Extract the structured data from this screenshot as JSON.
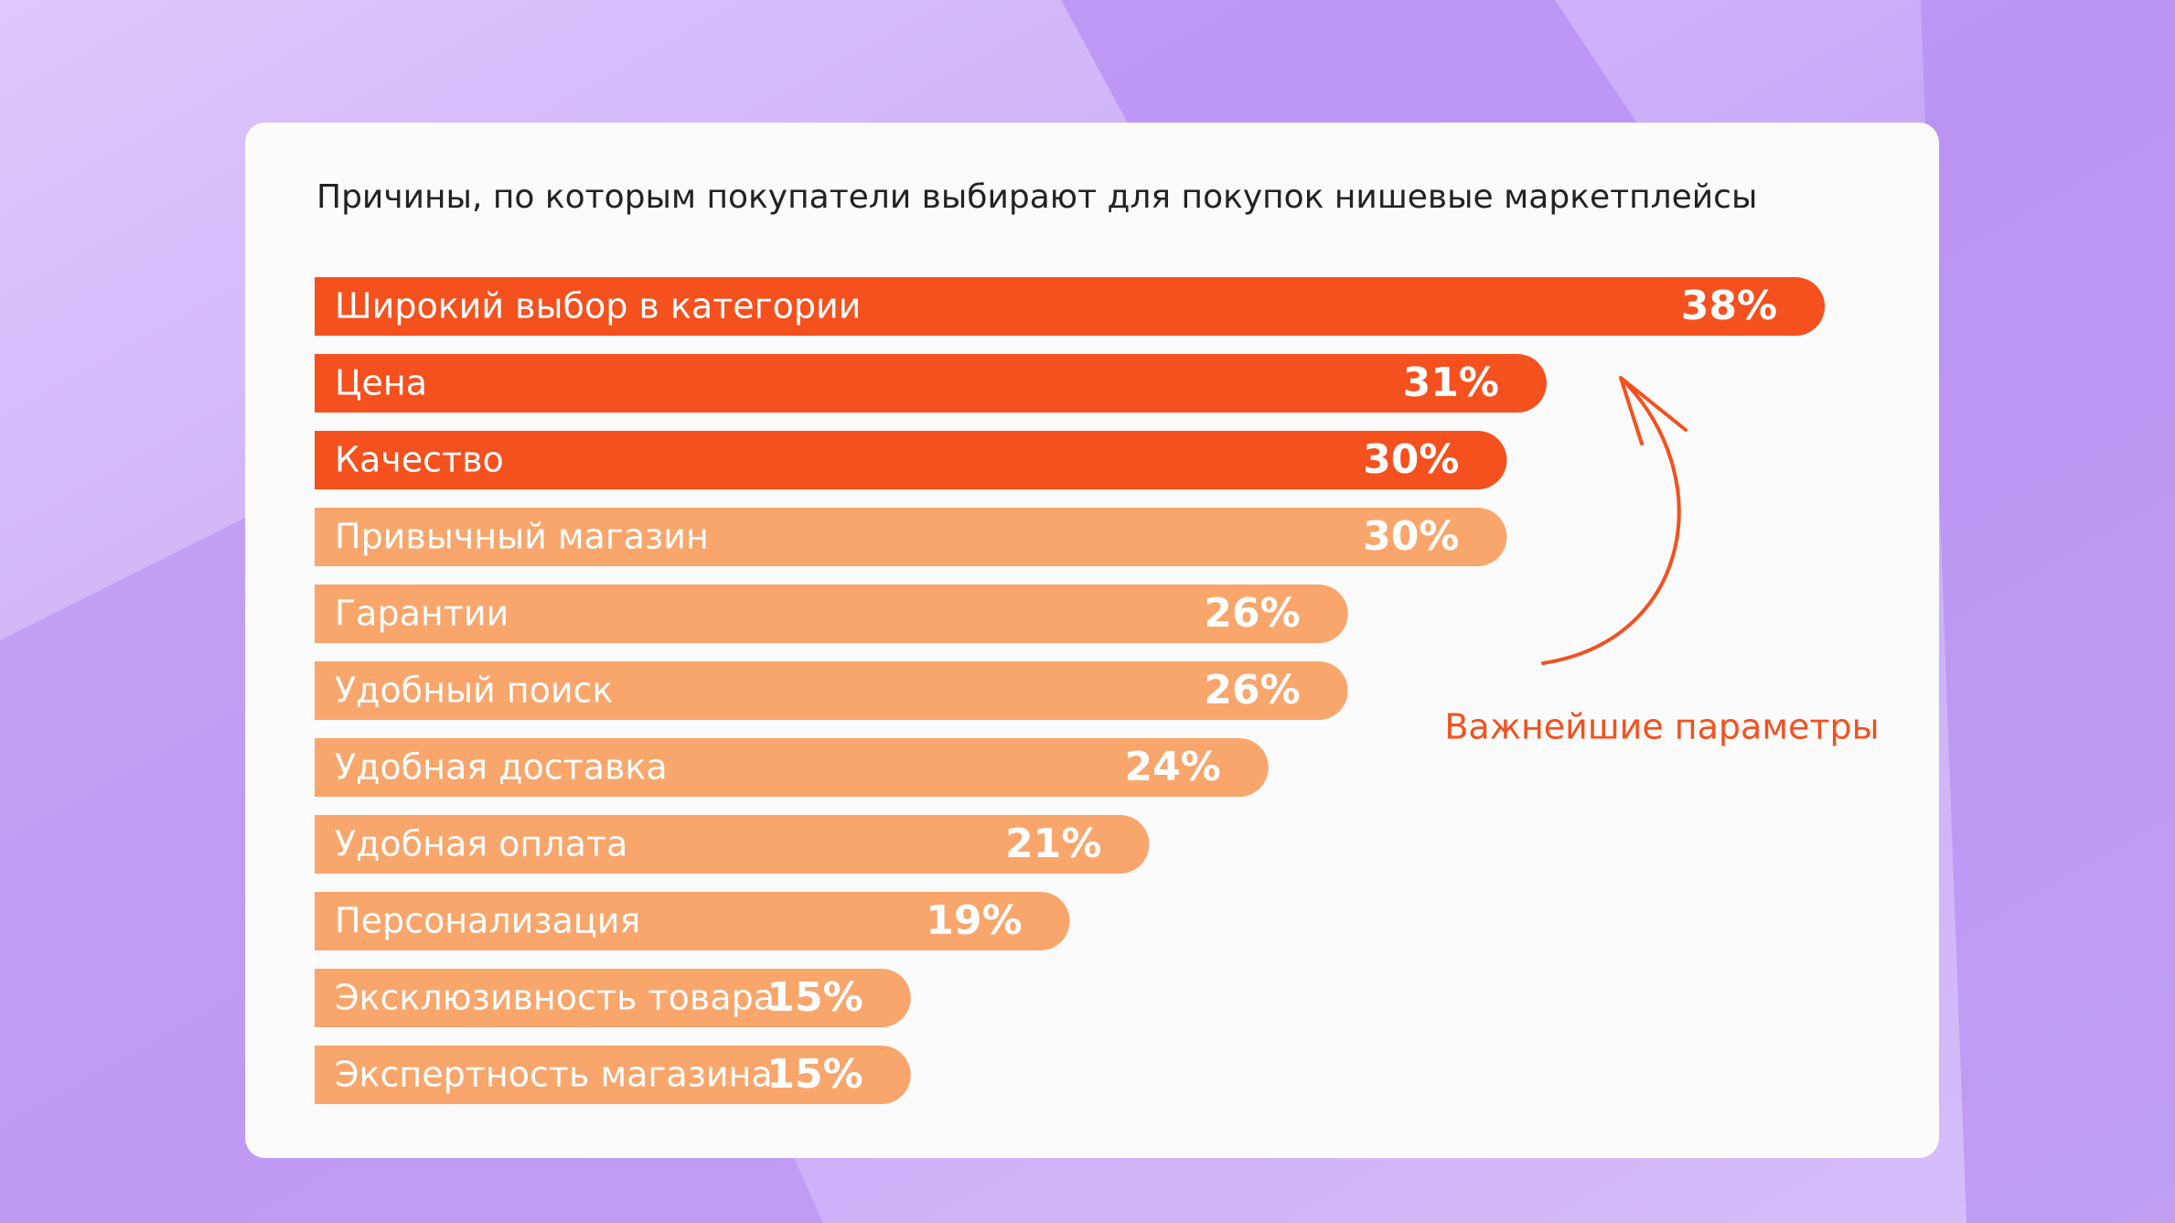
{
  "chart_data": {
    "type": "bar",
    "orientation": "horizontal",
    "title": "Причины, по которым покупатели выбирают для покупок нишевые маркетплейсы",
    "categories": [
      "Широкий выбор в категории",
      "Цена",
      "Качество",
      "Привычный магазин",
      "Гарантии",
      "Удобный поиск",
      "Удобная доставка",
      "Удобная оплата",
      "Персонализация",
      "Эксклюзивность товара",
      "Экспертность магазина"
    ],
    "values": [
      38,
      31,
      30,
      30,
      26,
      26,
      24,
      21,
      19,
      15,
      15
    ],
    "value_labels": [
      "38%",
      "31%",
      "30%",
      "30%",
      "26%",
      "26%",
      "24%",
      "21%",
      "19%",
      "15%",
      "15%"
    ],
    "colors": [
      "#f4511e",
      "#f4511e",
      "#f4511e",
      "#f9a66c",
      "#f9a66c",
      "#f9a66c",
      "#f9a66c",
      "#f9a66c",
      "#f9a66c",
      "#f9a66c",
      "#f9a66c"
    ],
    "annotation": "Важнейшие параметры",
    "annotation_color": "#f4511e"
  }
}
